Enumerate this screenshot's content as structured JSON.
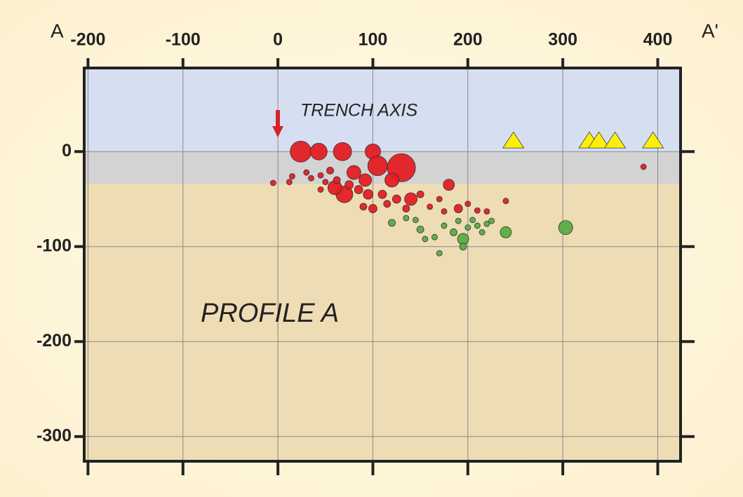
{
  "chart_data": {
    "type": "scatter",
    "left_label": "A",
    "right_label": "A'",
    "annotations": [
      "TRENCH AXIS",
      "PROFILE A"
    ],
    "xlim": [
      -204,
      424
    ],
    "ylim": [
      -326,
      88
    ],
    "xticks": [
      -200,
      -100,
      0,
      100,
      200,
      300,
      400
    ],
    "yticks": [
      0,
      -100,
      -200,
      -300
    ],
    "grid": true,
    "series": [
      {
        "color": "#e31e24",
        "marker": "circle",
        "x": [
          24,
          43,
          68,
          100,
          130,
          105,
          80,
          92,
          70,
          60,
          120,
          140,
          180,
          -5,
          12,
          15,
          30,
          35,
          45,
          50,
          55,
          62,
          75,
          85,
          95,
          110,
          115,
          125,
          150,
          135,
          100,
          90,
          160,
          175,
          190,
          200,
          210,
          220,
          240,
          385,
          45,
          170
        ],
        "values": [
          0,
          0,
          0,
          0,
          -17,
          -15,
          -22,
          -30,
          -45,
          -38,
          -30,
          -50,
          -35,
          -33,
          -32,
          -26,
          -22,
          -28,
          -25,
          -32,
          -20,
          -30,
          -35,
          -40,
          -45,
          -45,
          -55,
          -50,
          -45,
          -60,
          -60,
          -58,
          -58,
          -63,
          -60,
          -55,
          -62,
          -63,
          -52,
          -16,
          -40,
          -50
        ],
        "sizes": [
          15,
          12,
          13,
          11,
          20,
          14,
          10,
          9,
          12,
          10,
          10,
          9,
          8,
          4,
          4,
          4,
          4,
          4,
          4,
          4,
          5,
          5,
          6,
          6,
          7,
          6,
          5,
          6,
          5,
          5,
          6,
          5,
          4,
          4,
          6,
          4,
          4,
          4,
          4,
          4,
          4,
          4
        ]
      },
      {
        "color": "#5aad42",
        "marker": "circle",
        "x": [
          120,
          135,
          145,
          150,
          165,
          170,
          175,
          185,
          190,
          195,
          195,
          200,
          205,
          210,
          215,
          220,
          225,
          240,
          303,
          155
        ],
        "values": [
          -75,
          -70,
          -72,
          -82,
          -90,
          -107,
          -78,
          -85,
          -73,
          -92,
          -100,
          -80,
          -72,
          -78,
          -85,
          -76,
          -73,
          -85,
          -80,
          -92
        ],
        "sizes": [
          5,
          4,
          4,
          5,
          4,
          4,
          4,
          5,
          4,
          8,
          5,
          4,
          4,
          4,
          4,
          4,
          4,
          8,
          10,
          4
        ]
      },
      {
        "color": "#ffee00",
        "marker": "triangle",
        "x": [
          248,
          328,
          338,
          355,
          395
        ],
        "values": [
          11,
          11,
          11,
          11,
          11
        ],
        "sizes": [
          13,
          13,
          13,
          13,
          13
        ]
      }
    ]
  }
}
